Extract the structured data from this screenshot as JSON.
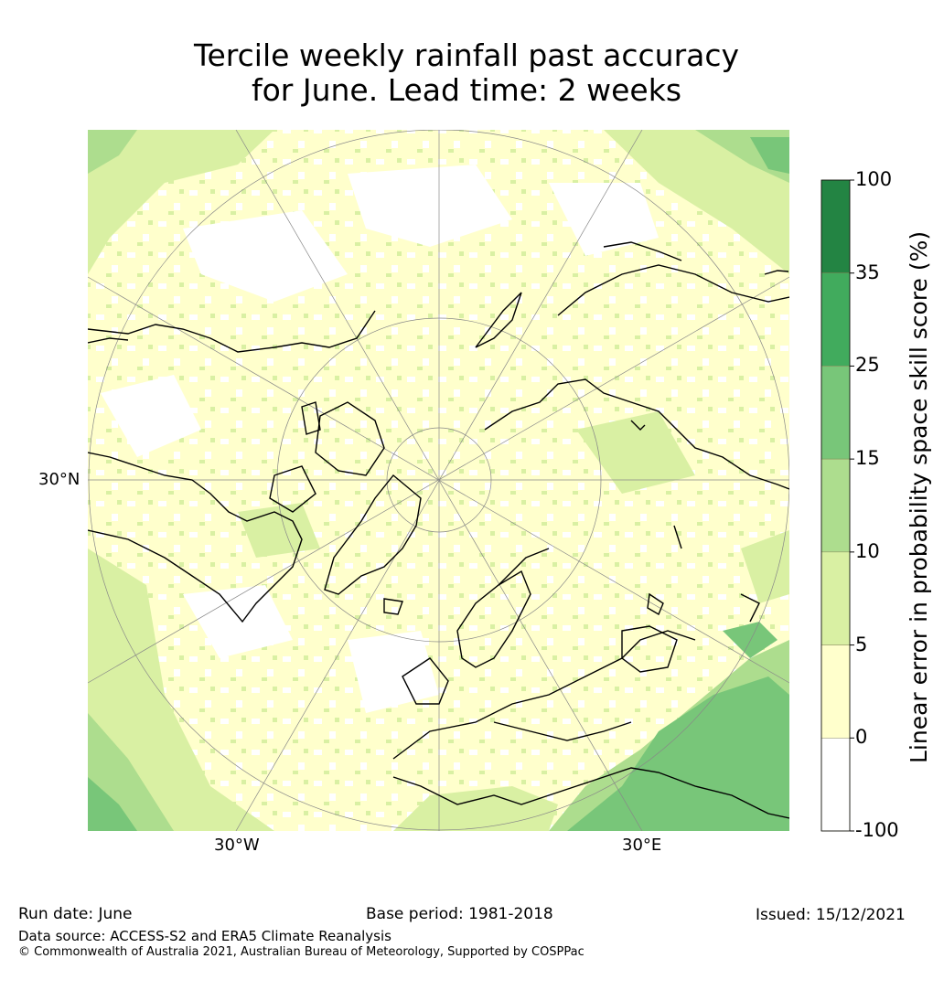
{
  "title": {
    "line1": "Tercile weekly rainfall past accuracy",
    "line2": "for June. Lead time: 2 weeks"
  },
  "map": {
    "projection": "north-polar-stereographic",
    "lon_labels": [
      "30°W",
      "30°E"
    ],
    "lat_labels": [
      "30°N"
    ],
    "colors": {
      "land_outline": "#000000",
      "graticule": "#888888",
      "ocean_background": "#ffffcc"
    }
  },
  "colorbar": {
    "title": "Linear error in probability space skill score (%)",
    "ticks": [
      "100",
      "35",
      "25",
      "15",
      "10",
      "5",
      "0",
      "-100"
    ],
    "bins": [
      {
        "range": "35 to 100",
        "color": "#238443"
      },
      {
        "range": "25 to 35",
        "color": "#41ab5d"
      },
      {
        "range": "15 to 25",
        "color": "#78c679"
      },
      {
        "range": "10 to 15",
        "color": "#addd8e"
      },
      {
        "range": "5 to 10",
        "color": "#d9f0a3"
      },
      {
        "range": "0 to 5",
        "color": "#ffffcc"
      },
      {
        "range": "-100 to 0",
        "color": "#ffffff"
      }
    ]
  },
  "footer": {
    "run_date": "Run date: June",
    "base_period": "Base period: 1981-2018",
    "issued": "Issued: 15/12/2021",
    "data_source": "Data source: ACCESS-S2 and ERA5 Climate Reanalysis",
    "copyright": "© Commonwealth of Australia 2021, Australian Bureau of Meteorology, Supported by COSPPac"
  }
}
